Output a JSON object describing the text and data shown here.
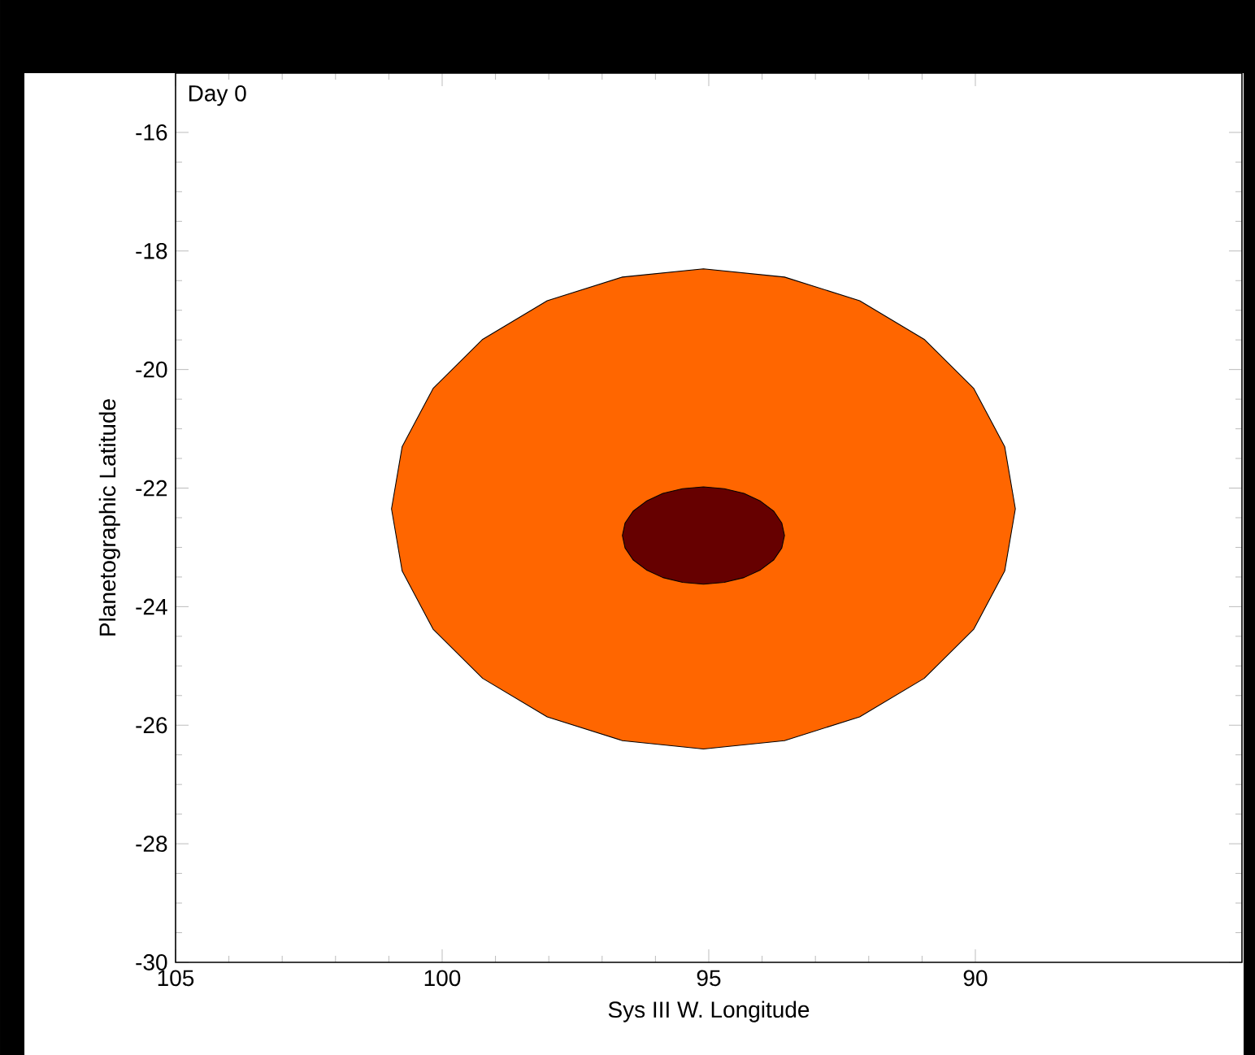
{
  "chart_data": {
    "type": "area",
    "xlabel": "Sys III W. Longitude",
    "ylabel": "Planetographic Latitude",
    "annotations": [
      "Day 0"
    ],
    "xlim": [
      105,
      85
    ],
    "ylim": [
      -30,
      -15
    ],
    "xticks": [
      105,
      100,
      95,
      90
    ],
    "yticks": [
      -30,
      -28,
      -26,
      -24,
      -22,
      -20,
      -18,
      -16
    ],
    "grid": false,
    "series": [
      {
        "color": "#ff6600",
        "x": [
          100.95,
          100.75,
          100.17,
          99.24,
          98.03,
          96.62,
          95.1,
          93.58,
          92.17,
          90.96,
          90.03,
          89.45,
          89.25,
          89.45,
          90.03,
          90.96,
          92.17,
          93.58,
          95.1,
          96.62,
          98.03,
          99.24,
          100.17,
          100.75
        ],
        "values": [
          -22.35,
          -21.3,
          -20.32,
          -19.49,
          -18.84,
          -18.44,
          -18.3,
          -18.44,
          -18.84,
          -19.49,
          -20.32,
          -21.3,
          -22.35,
          -23.4,
          -24.38,
          -25.21,
          -25.86,
          -26.26,
          -26.4,
          -26.26,
          -25.86,
          -25.21,
          -24.38,
          -23.4
        ]
      },
      {
        "color": "#660000",
        "x": [
          96.62,
          96.57,
          96.42,
          96.17,
          95.86,
          95.49,
          95.1,
          94.71,
          94.34,
          94.03,
          93.78,
          93.63,
          93.58,
          93.63,
          93.78,
          94.03,
          94.34,
          94.71,
          95.1,
          95.49,
          95.86,
          96.17,
          96.42,
          96.57
        ],
        "values": [
          -22.8,
          -22.59,
          -22.39,
          -22.22,
          -22.09,
          -22.01,
          -21.98,
          -22.01,
          -22.09,
          -22.22,
          -22.39,
          -22.59,
          -22.8,
          -23.01,
          -23.21,
          -23.38,
          -23.51,
          -23.59,
          -23.62,
          -23.59,
          -23.51,
          -23.38,
          -23.21,
          -23.01
        ]
      }
    ]
  }
}
